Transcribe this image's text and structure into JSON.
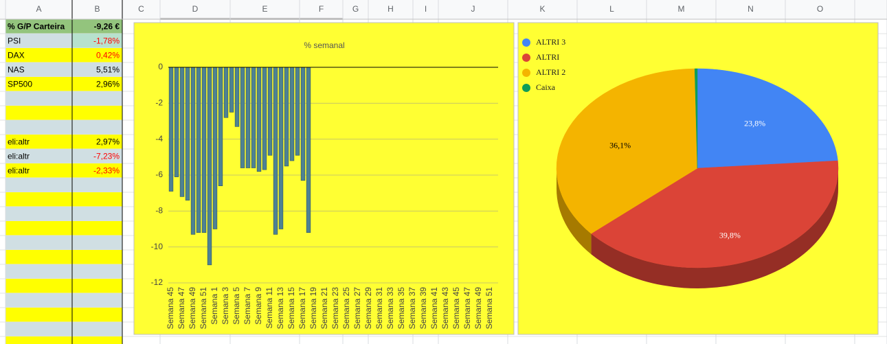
{
  "sheet": {
    "columns": [
      "A",
      "B",
      "C",
      "D",
      "E",
      "F",
      "G",
      "H",
      "I",
      "J",
      "K",
      "L",
      "M",
      "N",
      "O"
    ],
    "rows": [
      {
        "label": "% G/P Carteira",
        "value": "-9,26 €",
        "color": "#000000"
      },
      {
        "label": "PSI",
        "value": "-1,78%",
        "color": "#ff0000"
      },
      {
        "label": "DAX",
        "value": "0,42%",
        "color": "#ff0000"
      },
      {
        "label": "NAS",
        "value": "5,51%",
        "color": "#000000"
      },
      {
        "label": "SP500",
        "value": "2,96%",
        "color": "#000000"
      },
      null,
      null,
      null,
      {
        "label": "eli:altr",
        "value": "2,97%",
        "color": "#000000"
      },
      {
        "label": "eli:altr",
        "value": "-7,23%",
        "color": "#ff0000"
      },
      {
        "label": "eli:altr",
        "value": "-2,33%",
        "color": "#ff0000"
      }
    ]
  },
  "chart_data": [
    {
      "type": "bar",
      "title": "% semanal",
      "color": "#4e8293",
      "grid": true,
      "ylim": [
        -12,
        0
      ],
      "yticks": [
        0,
        -2,
        -4,
        -6,
        -8,
        -10,
        -12
      ],
      "categories": [
        "Semana 45",
        null,
        "Semana 47",
        null,
        "Semana 49",
        null,
        "Semana 51",
        null,
        "Semana 1",
        null,
        "Semana 3",
        null,
        "Semana 5",
        null,
        "Semana 7",
        null,
        "Semana 9",
        null,
        "Semana 11",
        null,
        "Semana 13",
        null,
        "Semana 15",
        null,
        "Semana 17",
        null,
        "Semana 19",
        null,
        "Semana 21",
        null,
        "Semana 23",
        null,
        "Semana 25",
        null,
        "Semana 27",
        null,
        "Semana 29",
        null,
        "Semana 31",
        null,
        "Semana 33",
        null,
        "Semana 35",
        null,
        "Semana 37",
        null,
        "Semana 39",
        null,
        "Semana 41",
        null,
        "Semana 43",
        null,
        "Semana 45",
        null,
        "Semana 47",
        null,
        "Semana 49",
        null,
        "Semana 51",
        null
      ],
      "values": [
        -6.9,
        -6.1,
        -7.2,
        -7.4,
        -9.3,
        -9.2,
        -9.2,
        -11.0,
        -9.0,
        -6.6,
        -2.8,
        -2.5,
        -3.3,
        -5.6,
        -5.6,
        -5.6,
        -5.8,
        -5.7,
        -4.9,
        -9.3,
        -9.0,
        -5.5,
        -5.2,
        -4.9,
        -6.3,
        -9.2,
        null,
        null,
        null,
        null,
        null,
        null,
        null,
        null,
        null,
        null,
        null,
        null,
        null,
        null,
        null,
        null,
        null,
        null,
        null,
        null,
        null,
        null,
        null,
        null,
        null,
        null,
        null,
        null,
        null,
        null,
        null,
        null,
        null,
        null
      ]
    },
    {
      "type": "pie",
      "legend": "top-left",
      "categories": [
        "ALTRI 3",
        "ALTRI",
        "ALTRI 2",
        "Caixa"
      ],
      "colors": [
        "#4285f4",
        "#db4437",
        "#f4b400",
        "#0f9d58"
      ],
      "values": [
        23.8,
        39.8,
        36.1,
        0.3
      ],
      "value_labels": [
        "23,8%",
        "39,8%",
        "36,1%",
        null
      ]
    }
  ]
}
